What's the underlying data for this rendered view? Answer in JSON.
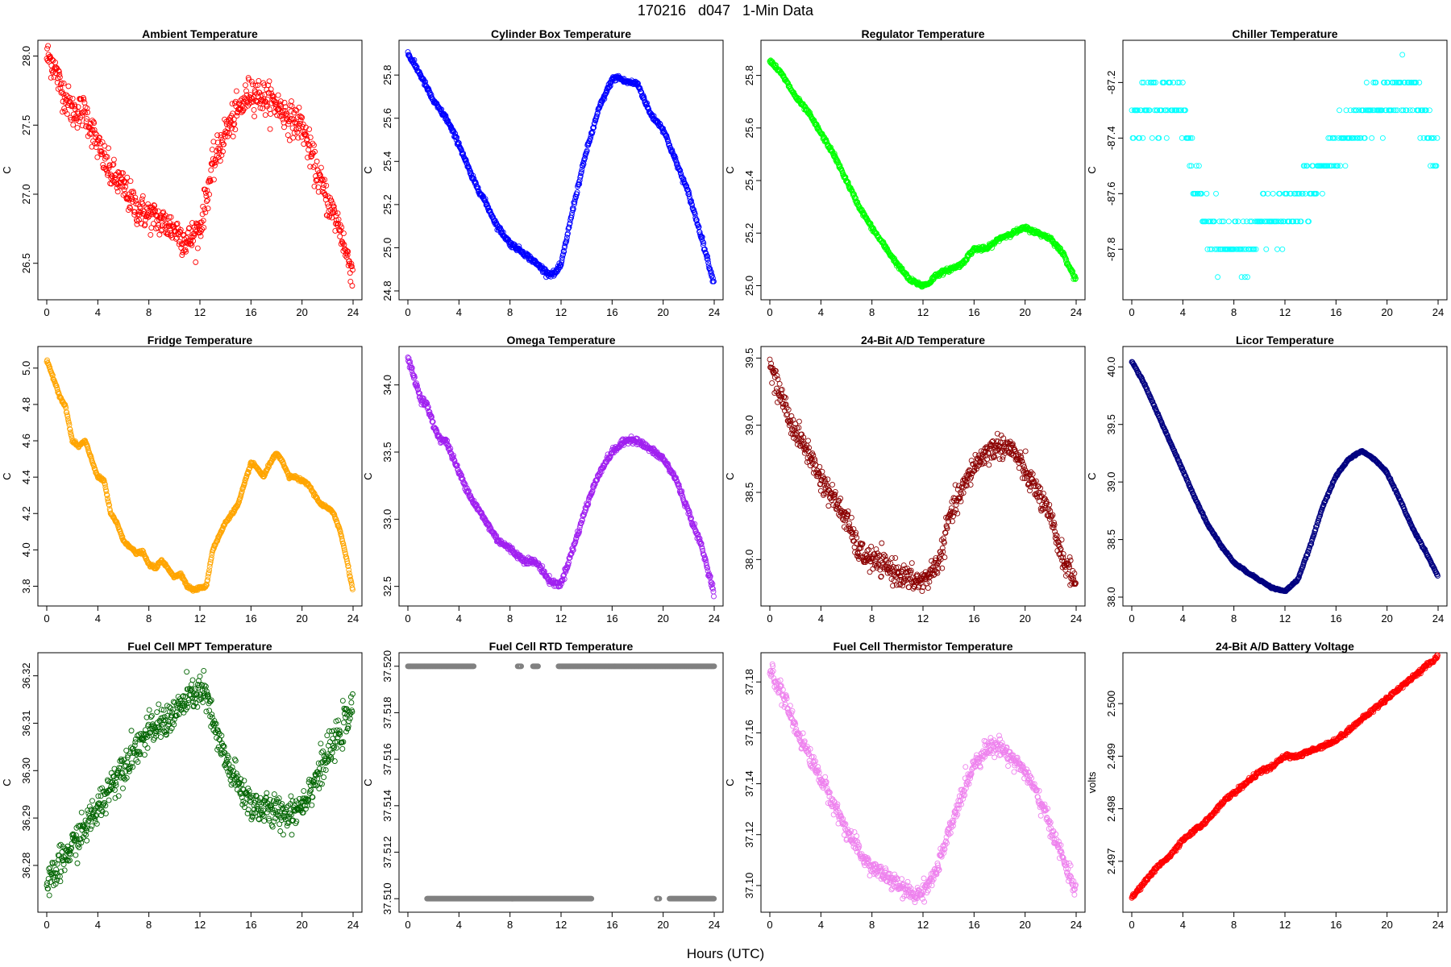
{
  "figure": {
    "title": "170216   d047   1-Min Data",
    "xlabel": "Hours (UTC)"
  },
  "chart_data": [
    {
      "type": "scatter",
      "title": "Ambient Temperature",
      "ylabel": "C",
      "color": "#ff0000",
      "xlim": [
        0,
        24
      ],
      "ylim": [
        26.3,
        28.05
      ],
      "xticks": [
        0,
        4,
        8,
        12,
        16,
        20,
        24
      ],
      "yticks": [
        26.5,
        27.0,
        27.5,
        28.0
      ],
      "ytick_labels": [
        "26.5",
        "27.0",
        "27.5",
        "28.0"
      ],
      "noise": 0.06,
      "x": [
        0,
        0.5,
        1,
        2,
        3,
        4,
        5,
        6,
        7,
        8,
        9,
        10,
        11,
        11.5,
        12,
        13,
        14,
        15,
        16,
        17,
        18,
        19,
        20,
        21,
        22,
        23,
        23.5,
        24
      ],
      "y": [
        28.0,
        27.95,
        27.8,
        27.6,
        27.6,
        27.35,
        27.15,
        27.05,
        26.9,
        26.85,
        26.8,
        26.75,
        26.65,
        26.7,
        26.75,
        27.2,
        27.45,
        27.6,
        27.75,
        27.7,
        27.65,
        27.55,
        27.5,
        27.2,
        26.95,
        26.75,
        26.55,
        26.45
      ]
    },
    {
      "type": "scatter",
      "title": "Cylinder Box Temperature",
      "ylabel": "C",
      "color": "#0000ff",
      "xlim": [
        0,
        24
      ],
      "ylim": [
        24.8,
        25.92
      ],
      "xticks": [
        0,
        4,
        8,
        12,
        16,
        20,
        24
      ],
      "yticks": [
        24.8,
        25.0,
        25.2,
        25.4,
        25.6,
        25.8
      ],
      "ytick_labels": [
        "24.8",
        "25.0",
        "25.2",
        "25.4",
        "25.6",
        "25.8"
      ],
      "noise": 0.006,
      "x": [
        0,
        1,
        2,
        3,
        4,
        5,
        6,
        7,
        8,
        9,
        10,
        11,
        11.5,
        12,
        13,
        14,
        15,
        16,
        16.5,
        17,
        18,
        19,
        20,
        21,
        22,
        23,
        24
      ],
      "y": [
        25.9,
        25.8,
        25.68,
        25.6,
        25.48,
        25.33,
        25.22,
        25.1,
        25.02,
        24.98,
        24.93,
        24.88,
        24.88,
        24.92,
        25.2,
        25.45,
        25.65,
        25.78,
        25.79,
        25.77,
        25.76,
        25.62,
        25.55,
        25.4,
        25.25,
        25.05,
        24.83
      ]
    },
    {
      "type": "scatter",
      "title": "Regulator Temperature",
      "ylabel": "C",
      "color": "#00ff00",
      "xlim": [
        0,
        24
      ],
      "ylim": [
        24.98,
        25.9
      ],
      "xticks": [
        0,
        4,
        8,
        12,
        16,
        20,
        24
      ],
      "yticks": [
        25.0,
        25.2,
        25.4,
        25.6,
        25.8
      ],
      "ytick_labels": [
        "25.0",
        "25.2",
        "25.4",
        "25.6",
        "25.8"
      ],
      "noise": 0.004,
      "x": [
        0,
        1,
        2,
        3,
        4,
        5,
        6,
        7,
        8,
        9,
        10,
        11,
        12,
        12.5,
        13,
        14,
        15,
        16,
        17,
        18,
        19,
        20,
        21,
        22,
        23,
        24
      ],
      "y": [
        25.86,
        25.8,
        25.72,
        25.66,
        25.58,
        25.5,
        25.4,
        25.3,
        25.22,
        25.15,
        25.08,
        25.02,
        25.0,
        25.01,
        25.04,
        25.06,
        25.08,
        25.14,
        25.14,
        25.18,
        25.2,
        25.22,
        25.2,
        25.18,
        25.12,
        25.02
      ]
    },
    {
      "type": "scatter",
      "title": "Chiller Temperature",
      "ylabel": "C",
      "color": "#00ffff",
      "xlim": [
        0,
        24
      ],
      "ylim": [
        -87.95,
        -87.08
      ],
      "xticks": [
        0,
        4,
        8,
        12,
        16,
        20,
        24
      ],
      "yticks": [
        -87.8,
        -87.6,
        -87.4,
        -87.2
      ],
      "ytick_labels": [
        "-87.8",
        "-87.6",
        "-87.4",
        "-87.2"
      ],
      "noise": 0,
      "quantized": 0.1,
      "scatter_levels": true,
      "x": [
        0,
        1,
        2,
        3,
        4,
        4.5,
        5,
        5.5,
        6,
        7,
        8,
        9,
        10,
        11,
        12,
        13,
        14,
        15,
        16,
        17,
        18,
        19,
        20,
        21,
        22,
        23,
        23.5,
        24
      ],
      "y": [
        -87.35,
        -87.3,
        -87.25,
        -87.25,
        -87.3,
        -87.45,
        -87.55,
        -87.65,
        -87.7,
        -87.78,
        -87.8,
        -87.78,
        -87.72,
        -87.7,
        -87.68,
        -87.62,
        -87.58,
        -87.5,
        -87.42,
        -87.4,
        -87.35,
        -87.3,
        -87.27,
        -87.22,
        -87.22,
        -87.3,
        -87.45,
        -87.5
      ]
    },
    {
      "type": "scatter",
      "title": "Fridge Temperature",
      "ylabel": "C",
      "color": "#ffa500",
      "xlim": [
        0,
        24
      ],
      "ylim": [
        3.74,
        5.07
      ],
      "xticks": [
        0,
        4,
        8,
        12,
        16,
        20,
        24
      ],
      "yticks": [
        3.8,
        4.0,
        4.2,
        4.4,
        4.6,
        4.8,
        5.0
      ],
      "ytick_labels": [
        "3.8",
        "4.0",
        "4.2",
        "4.4",
        "4.6",
        "4.8",
        "5.0"
      ],
      "noise": 0.004,
      "x": [
        0,
        0.5,
        1,
        1.5,
        2,
        2.5,
        3,
        3.5,
        4,
        4.5,
        5,
        5.5,
        6,
        6.5,
        7,
        7.5,
        8,
        8.5,
        9,
        9.5,
        10,
        10.5,
        11,
        11.5,
        12,
        12.5,
        13,
        14,
        15,
        16,
        16.5,
        17,
        17.5,
        18,
        18.5,
        19,
        19.5,
        20,
        20.5,
        21,
        21.5,
        22,
        22.5,
        23,
        23.5,
        24
      ],
      "y": [
        5.04,
        4.95,
        4.85,
        4.78,
        4.6,
        4.57,
        4.6,
        4.5,
        4.4,
        4.38,
        4.2,
        4.15,
        4.05,
        4.02,
        3.98,
        3.99,
        3.92,
        3.9,
        3.94,
        3.9,
        3.85,
        3.87,
        3.8,
        3.78,
        3.79,
        3.8,
        4.0,
        4.15,
        4.25,
        4.48,
        4.45,
        4.4,
        4.48,
        4.53,
        4.48,
        4.4,
        4.4,
        4.38,
        4.36,
        4.3,
        4.25,
        4.23,
        4.2,
        4.1,
        3.95,
        3.77
      ]
    },
    {
      "type": "scatter",
      "title": "Omega Temperature",
      "ylabel": "C",
      "color": "#a020f0",
      "xlim": [
        0,
        24
      ],
      "ylim": [
        32.42,
        34.22
      ],
      "xticks": [
        0,
        4,
        8,
        12,
        16,
        20,
        24
      ],
      "yticks": [
        32.5,
        33.0,
        33.5,
        34.0
      ],
      "ytick_labels": [
        "32.5",
        "33.0",
        "33.5",
        "34.0"
      ],
      "noise": 0.012,
      "x": [
        0,
        0.5,
        1,
        1.5,
        2,
        2.5,
        3,
        4,
        5,
        6,
        7,
        8,
        9,
        10,
        10.5,
        11,
        11.5,
        12,
        13,
        14,
        15,
        16,
        17,
        17.5,
        18,
        19,
        20,
        21,
        22,
        23,
        24
      ],
      "y": [
        34.2,
        34.05,
        33.9,
        33.85,
        33.7,
        33.6,
        33.58,
        33.35,
        33.15,
        33.0,
        32.85,
        32.78,
        32.7,
        32.68,
        32.63,
        32.55,
        32.52,
        32.52,
        32.8,
        33.1,
        33.35,
        33.5,
        33.58,
        33.6,
        33.58,
        33.52,
        33.45,
        33.3,
        33.05,
        32.8,
        32.45
      ]
    },
    {
      "type": "scatter",
      "title": "24-Bit A/D Temperature",
      "ylabel": "C",
      "color": "#8b0000",
      "xlim": [
        0,
        24
      ],
      "ylim": [
        37.72,
        39.52
      ],
      "xticks": [
        0,
        4,
        8,
        12,
        16,
        20,
        24
      ],
      "yticks": [
        38.0,
        38.5,
        39.0,
        39.5
      ],
      "ytick_labels": [
        "38.0",
        "38.5",
        "39.0",
        "39.5"
      ],
      "noise": 0.045,
      "x": [
        0,
        0.5,
        1,
        1.5,
        2,
        3,
        4,
        5,
        6,
        7,
        8,
        9,
        10,
        11,
        12,
        13,
        13.5,
        14,
        15,
        16,
        17,
        18,
        19,
        20,
        21,
        22,
        23,
        24
      ],
      "y": [
        39.45,
        39.3,
        39.2,
        39.05,
        38.95,
        38.8,
        38.6,
        38.45,
        38.3,
        38.05,
        38.0,
        37.95,
        37.9,
        37.85,
        37.83,
        37.95,
        38.05,
        38.3,
        38.5,
        38.7,
        38.8,
        38.85,
        38.82,
        38.65,
        38.5,
        38.3,
        38.0,
        37.82
      ]
    },
    {
      "type": "scatter",
      "title": "Licor Temperature",
      "ylabel": "C",
      "color": "#000080",
      "xlim": [
        0,
        24
      ],
      "ylim": [
        38.0,
        40.1
      ],
      "xticks": [
        0,
        4,
        8,
        12,
        16,
        20,
        24
      ],
      "yticks": [
        38.0,
        38.5,
        39.0,
        39.5,
        40.0
      ],
      "ytick_labels": [
        "38.0",
        "38.5",
        "39.0",
        "39.5",
        "40.0"
      ],
      "noise": 0.004,
      "x": [
        0,
        1,
        2,
        3,
        4,
        5,
        6,
        7,
        8,
        9,
        10,
        11,
        12,
        13,
        14,
        15,
        16,
        17,
        18,
        19,
        20,
        21,
        22,
        23,
        24
      ],
      "y": [
        40.05,
        39.85,
        39.6,
        39.35,
        39.1,
        38.85,
        38.62,
        38.45,
        38.3,
        38.22,
        38.15,
        38.08,
        38.05,
        38.15,
        38.45,
        38.8,
        39.05,
        39.2,
        39.27,
        39.2,
        39.08,
        38.85,
        38.6,
        38.4,
        38.18
      ]
    },
    {
      "type": "scatter",
      "title": "Fuel Cell MPT Temperature",
      "ylabel": "C",
      "color": "#006400",
      "xlim": [
        0,
        24
      ],
      "ylim": [
        36.272,
        36.323
      ],
      "xticks": [
        0,
        4,
        8,
        12,
        16,
        20,
        24
      ],
      "yticks": [
        36.28,
        36.29,
        36.3,
        36.31,
        36.32
      ],
      "ytick_labels": [
        "36.28",
        "36.29",
        "36.30",
        "36.31",
        "36.32"
      ],
      "noise": 0.0018,
      "x": [
        0,
        1,
        2,
        3,
        4,
        5,
        6,
        7,
        8,
        9,
        10,
        11,
        12,
        12.5,
        13,
        14,
        15,
        16,
        17,
        18,
        19,
        20,
        21,
        22,
        23,
        24
      ],
      "y": [
        36.275,
        36.28,
        36.284,
        36.288,
        36.292,
        36.297,
        36.301,
        36.305,
        36.308,
        36.31,
        36.312,
        36.315,
        36.317,
        36.316,
        36.31,
        36.302,
        36.297,
        36.293,
        36.292,
        36.291,
        36.291,
        36.293,
        36.298,
        36.303,
        36.308,
        36.313
      ]
    },
    {
      "type": "scatter",
      "title": "Fuel Cell RTD Temperature",
      "ylabel": "C",
      "color": "#808080",
      "xlim": [
        0,
        24
      ],
      "ylim": [
        37.5098,
        37.5202
      ],
      "xticks": [
        0,
        4,
        8,
        12,
        16,
        20,
        24
      ],
      "yticks": [
        37.51,
        37.512,
        37.514,
        37.516,
        37.518,
        37.52
      ],
      "ytick_labels": [
        "37.510",
        "37.512",
        "37.514",
        "37.516",
        "37.518",
        "37.520"
      ],
      "noise": 0,
      "levels": [
        {
          "y": 37.52,
          "ranges": [
            [
              0,
              5.2
            ],
            [
              8.6,
              8.9
            ],
            [
              9.8,
              10.2
            ],
            [
              11.8,
              24
            ]
          ]
        },
        {
          "y": 37.51,
          "ranges": [
            [
              1.5,
              14.4
            ],
            [
              19.5,
              19.7
            ],
            [
              20.5,
              24
            ]
          ]
        }
      ]
    },
    {
      "type": "scatter",
      "title": "Fuel Cell Thermistor Temperature",
      "ylabel": "C",
      "color": "#ee82ee",
      "xlim": [
        0,
        24
      ],
      "ylim": [
        37.093,
        37.188
      ],
      "xticks": [
        0,
        4,
        8,
        12,
        16,
        20,
        24
      ],
      "yticks": [
        37.1,
        37.12,
        37.14,
        37.16,
        37.18
      ],
      "ytick_labels": [
        "37.10",
        "37.12",
        "37.14",
        "37.16",
        "37.18"
      ],
      "noise": 0.0017,
      "x": [
        0,
        1,
        2,
        3,
        4,
        5,
        6,
        7,
        8,
        9,
        10,
        11,
        11.5,
        12,
        13,
        14,
        15,
        16,
        17,
        18,
        19,
        20,
        21,
        22,
        23,
        24
      ],
      "y": [
        37.185,
        37.175,
        37.162,
        37.152,
        37.142,
        37.132,
        37.122,
        37.113,
        37.107,
        37.104,
        37.1,
        37.097,
        37.096,
        37.098,
        37.105,
        37.12,
        37.135,
        37.148,
        37.154,
        37.155,
        37.15,
        37.145,
        37.135,
        37.123,
        37.11,
        37.098
      ]
    },
    {
      "type": "scatter",
      "title": "24-Bit A/D Battery Voltage",
      "ylabel": "volts",
      "color": "#ff0000",
      "xlim": [
        0,
        24
      ],
      "ylim": [
        2.4962,
        2.5008
      ],
      "xticks": [
        0,
        4,
        8,
        12,
        16,
        20,
        24
      ],
      "yticks": [
        2.497,
        2.498,
        2.499,
        2.5
      ],
      "ytick_labels": [
        "2.497",
        "2.498",
        "2.499",
        "2.500"
      ],
      "noise": 2e-05,
      "x": [
        0,
        1,
        2,
        3,
        4,
        5,
        6,
        7,
        8,
        9,
        10,
        11,
        12,
        13,
        14,
        15,
        16,
        17,
        18,
        19,
        20,
        21,
        22,
        23,
        24
      ],
      "y": [
        2.4963,
        2.4966,
        2.4969,
        2.4971,
        2.4974,
        2.4976,
        2.4978,
        2.4981,
        2.4983,
        2.4985,
        2.4987,
        2.4988,
        2.499,
        2.499,
        2.4991,
        2.4992,
        2.4993,
        2.4995,
        2.4997,
        2.4999,
        2.5001,
        2.5003,
        2.5005,
        2.5007,
        2.5009
      ]
    }
  ]
}
